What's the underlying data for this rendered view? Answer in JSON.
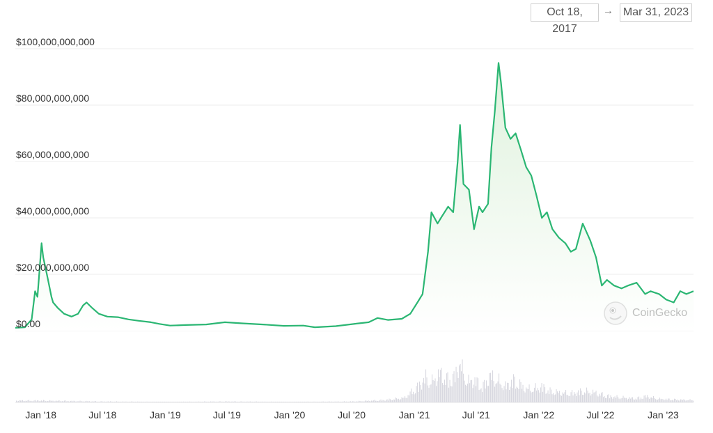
{
  "range": {
    "start": "Oct 18, 2017",
    "arrow": "→",
    "end": "Mar 31, 2023"
  },
  "watermark": {
    "brand": "CoinGecko"
  },
  "colors": {
    "line": "#2bb673",
    "fill_top": "#dff2dd",
    "fill_bottom": "#ffffff",
    "volume": "#d8d8e0",
    "grid": "#ececec"
  },
  "chart_data": {
    "type": "area",
    "title": "",
    "xlabel": "",
    "ylabel": "",
    "x_range": [
      "2017-10-18",
      "2023-03-31"
    ],
    "ylim": [
      0,
      100000000000
    ],
    "y_ticks": [
      {
        "value": 0,
        "label": "$0.00"
      },
      {
        "value": 20000000000,
        "label": "$20,000,000,000"
      },
      {
        "value": 40000000000,
        "label": "$40,000,000,000"
      },
      {
        "value": 60000000000,
        "label": "$60,000,000,000"
      },
      {
        "value": 80000000000,
        "label": "$80,000,000,000"
      },
      {
        "value": 100000000000,
        "label": "$100,000,000,000"
      }
    ],
    "x_ticks": [
      {
        "date": "2018-01-01",
        "label": "Jan '18"
      },
      {
        "date": "2018-07-01",
        "label": "Jul '18"
      },
      {
        "date": "2019-01-01",
        "label": "Jan '19"
      },
      {
        "date": "2019-07-01",
        "label": "Jul '19"
      },
      {
        "date": "2020-01-01",
        "label": "Jan '20"
      },
      {
        "date": "2020-07-01",
        "label": "Jul '20"
      },
      {
        "date": "2021-01-01",
        "label": "Jan '21"
      },
      {
        "date": "2021-07-01",
        "label": "Jul '21"
      },
      {
        "date": "2022-01-01",
        "label": "Jan '22"
      },
      {
        "date": "2022-07-01",
        "label": "Jul '22"
      },
      {
        "date": "2023-01-01",
        "label": "Jan '23"
      }
    ],
    "grid": true,
    "legend": "none",
    "series": [
      {
        "x": [
          "2017-10-18",
          "2017-11-15",
          "2017-12-05",
          "2017-12-15",
          "2017-12-22",
          "2017-12-27",
          "2018-01-03",
          "2018-01-08",
          "2018-01-15",
          "2018-01-22",
          "2018-02-01",
          "2018-02-06",
          "2018-02-20",
          "2018-03-10",
          "2018-04-01",
          "2018-04-20",
          "2018-05-05",
          "2018-05-15",
          "2018-06-01",
          "2018-06-20",
          "2018-07-15",
          "2018-08-15",
          "2018-09-15",
          "2018-10-15",
          "2018-11-20",
          "2018-12-15",
          "2019-01-15",
          "2019-03-01",
          "2019-05-01",
          "2019-06-25",
          "2019-08-15",
          "2019-10-15",
          "2019-12-15",
          "2020-02-10",
          "2020-03-15",
          "2020-05-15",
          "2020-07-15",
          "2020-08-20",
          "2020-09-15",
          "2020-10-15",
          "2020-11-25",
          "2020-12-20",
          "2021-01-10",
          "2021-01-25",
          "2021-02-10",
          "2021-02-20",
          "2021-03-10",
          "2021-03-25",
          "2021-04-10",
          "2021-04-25",
          "2021-05-08",
          "2021-05-15",
          "2021-05-25",
          "2021-06-10",
          "2021-06-25",
          "2021-07-10",
          "2021-07-20",
          "2021-08-05",
          "2021-08-15",
          "2021-08-25",
          "2021-09-05",
          "2021-09-12",
          "2021-09-25",
          "2021-10-10",
          "2021-10-25",
          "2021-11-10",
          "2021-11-25",
          "2021-12-10",
          "2021-12-25",
          "2022-01-10",
          "2022-01-25",
          "2022-02-10",
          "2022-03-01",
          "2022-03-20",
          "2022-04-05",
          "2022-04-20",
          "2022-05-10",
          "2022-06-01",
          "2022-06-18",
          "2022-07-05",
          "2022-07-20",
          "2022-08-10",
          "2022-09-01",
          "2022-09-20",
          "2022-10-15",
          "2022-11-09",
          "2022-11-25",
          "2022-12-20",
          "2023-01-10",
          "2023-02-01",
          "2023-02-20",
          "2023-03-10",
          "2023-03-31"
        ],
        "y": [
          1000000000,
          1200000000,
          4000000000,
          14000000000,
          12000000000,
          20000000000,
          31000000000,
          26000000000,
          22000000000,
          18000000000,
          12000000000,
          10000000000,
          8000000000,
          6000000000,
          5000000000,
          6000000000,
          9000000000,
          10000000000,
          8000000000,
          6000000000,
          5000000000,
          4800000000,
          4000000000,
          3500000000,
          3000000000,
          2400000000,
          1800000000,
          2000000000,
          2200000000,
          3000000000,
          2600000000,
          2200000000,
          1700000000,
          1800000000,
          1200000000,
          1600000000,
          2500000000,
          3000000000,
          4500000000,
          3800000000,
          4200000000,
          6000000000,
          10000000000,
          13000000000,
          28000000000,
          42000000000,
          38000000000,
          41000000000,
          44000000000,
          42000000000,
          60000000000,
          73000000000,
          52000000000,
          50000000000,
          36000000000,
          44000000000,
          42000000000,
          45000000000,
          65000000000,
          78000000000,
          95000000000,
          88000000000,
          72000000000,
          68000000000,
          70000000000,
          64000000000,
          58000000000,
          55000000000,
          48000000000,
          40000000000,
          42000000000,
          36000000000,
          33000000000,
          31000000000,
          28000000000,
          29000000000,
          38000000000,
          32000000000,
          26000000000,
          16000000000,
          18000000000,
          16000000000,
          15000000000,
          16000000000,
          17000000000,
          13000000000,
          14000000000,
          13000000000,
          11000000000,
          10000000000,
          14000000000,
          13000000000,
          14000000000
        ]
      }
    ],
    "volume": {
      "x": [
        "2018-01-01",
        "2018-07-01",
        "2019-01-01",
        "2019-07-01",
        "2020-01-01",
        "2020-07-01",
        "2020-10-01",
        "2020-12-01",
        "2021-01-10",
        "2021-02-01",
        "2021-02-20",
        "2021-03-15",
        "2021-04-10",
        "2021-05-01",
        "2021-05-12",
        "2021-05-20",
        "2021-06-05",
        "2021-06-25",
        "2021-07-20",
        "2021-08-10",
        "2021-08-25",
        "2021-09-08",
        "2021-09-25",
        "2021-10-15",
        "2021-11-05",
        "2021-11-25",
        "2021-12-15",
        "2022-01-10",
        "2022-02-01",
        "2022-03-01",
        "2022-04-01",
        "2022-05-10",
        "2022-06-15",
        "2022-07-15",
        "2022-08-15",
        "2022-09-15",
        "2022-10-15",
        "2022-11-10",
        "2022-12-15",
        "2023-01-15",
        "2023-02-15",
        "2023-03-31"
      ],
      "y": [
        0.04,
        0.02,
        0.01,
        0.02,
        0.01,
        0.02,
        0.05,
        0.1,
        0.35,
        0.55,
        0.45,
        0.65,
        0.5,
        0.6,
        0.95,
        0.7,
        0.45,
        0.5,
        0.35,
        0.6,
        0.5,
        0.45,
        0.35,
        0.5,
        0.4,
        0.3,
        0.3,
        0.35,
        0.25,
        0.22,
        0.2,
        0.25,
        0.22,
        0.15,
        0.12,
        0.1,
        0.09,
        0.14,
        0.08,
        0.07,
        0.06,
        0.05
      ]
    }
  }
}
